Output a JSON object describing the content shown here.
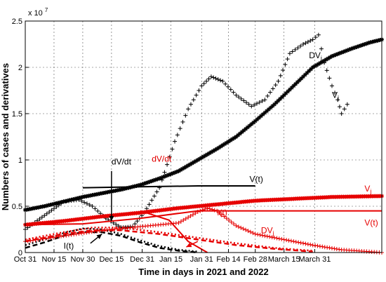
{
  "chart_data": {
    "type": "line",
    "xlabel": "Time in days in 2021 and 2022",
    "ylabel": "Numbers of cases and derivatives",
    "y_exponent_label": "x 10",
    "y_exponent_power": "7",
    "xlim": [
      0,
      186
    ],
    "ylim": [
      0,
      2.5
    ],
    "x_ticks": [
      {
        "x": 0,
        "label": "Oct 31"
      },
      {
        "x": 15,
        "label": "Nov 15"
      },
      {
        "x": 30,
        "label": "Nov 30"
      },
      {
        "x": 45,
        "label": "Dec 15"
      },
      {
        "x": 61,
        "label": "Dec 31"
      },
      {
        "x": 76,
        "label": "Jan 15"
      },
      {
        "x": 92,
        "label": "Jan 31"
      },
      {
        "x": 106,
        "label": "Feb 14"
      },
      {
        "x": 120,
        "label": "Feb 28"
      },
      {
        "x": 135,
        "label": "March 15"
      },
      {
        "x": 151,
        "label": "March 31"
      }
    ],
    "y_ticks": [
      {
        "y": 0,
        "label": "0"
      },
      {
        "y": 0.5,
        "label": "0.5"
      },
      {
        "y": 1,
        "label": "1"
      },
      {
        "y": 1.5,
        "label": "1.5"
      },
      {
        "y": 2,
        "label": "2"
      },
      {
        "y": 2.5,
        "label": "2.5"
      }
    ],
    "grid": true,
    "series": [
      {
        "color": "#000000",
        "style": "star",
        "points": [
          [
            0,
            0.46
          ],
          [
            10,
            0.5
          ],
          [
            20,
            0.55
          ],
          [
            30,
            0.6
          ],
          [
            40,
            0.64
          ],
          [
            50,
            0.68
          ],
          [
            60,
            0.73
          ],
          [
            70,
            0.8
          ],
          [
            80,
            0.88
          ],
          [
            90,
            1.0
          ],
          [
            100,
            1.12
          ],
          [
            110,
            1.25
          ],
          [
            120,
            1.42
          ],
          [
            130,
            1.6
          ],
          [
            140,
            1.8
          ],
          [
            150,
            2.0
          ],
          [
            160,
            2.12
          ],
          [
            170,
            2.2
          ],
          [
            180,
            2.27
          ],
          [
            186,
            2.3
          ]
        ]
      },
      {
        "color": "#000000",
        "style": "plus",
        "points": [
          [
            0,
            0.25
          ],
          [
            10,
            0.4
          ],
          [
            20,
            0.55
          ],
          [
            28,
            0.57
          ],
          [
            35,
            0.5
          ],
          [
            42,
            0.37
          ],
          [
            50,
            0.27
          ],
          [
            56,
            0.28
          ],
          [
            62,
            0.43
          ],
          [
            70,
            0.7
          ],
          [
            78,
            1.2
          ],
          [
            85,
            1.55
          ],
          [
            92,
            1.8
          ],
          [
            97,
            1.9
          ],
          [
            103,
            1.85
          ],
          [
            110,
            1.7
          ],
          [
            118,
            1.58
          ],
          [
            125,
            1.65
          ],
          [
            132,
            1.85
          ],
          [
            138,
            2.15
          ],
          [
            145,
            2.25
          ],
          [
            150,
            2.3
          ],
          [
            153,
            2.35
          ],
          [
            156,
            2.05
          ],
          [
            160,
            1.8
          ],
          [
            163,
            1.65
          ],
          [
            165,
            1.5
          ],
          [
            168,
            1.6
          ]
        ]
      },
      {
        "color": "#000000",
        "style": "line",
        "points": [
          [
            30,
            0.7
          ],
          [
            60,
            0.71
          ],
          [
            90,
            0.72
          ],
          [
            120,
            0.72
          ]
        ]
      },
      {
        "color": "#000000",
        "style": "dash",
        "points": [
          [
            0,
            0.05
          ],
          [
            10,
            0.11
          ],
          [
            20,
            0.18
          ],
          [
            30,
            0.22
          ],
          [
            40,
            0.22
          ],
          [
            50,
            0.18
          ],
          [
            60,
            0.11
          ],
          [
            70,
            0.05
          ],
          [
            80,
            0.02
          ],
          [
            90,
            0.0
          ]
        ]
      },
      {
        "color": "#000000",
        "style": "dots",
        "points": [
          [
            0,
            0.08
          ],
          [
            10,
            0.14
          ],
          [
            20,
            0.21
          ],
          [
            30,
            0.26
          ],
          [
            40,
            0.25
          ],
          [
            50,
            0.2
          ],
          [
            60,
            0.13
          ],
          [
            70,
            0.07
          ],
          [
            80,
            0.03
          ],
          [
            90,
            0.01
          ]
        ]
      },
      {
        "color": "#e60000",
        "style": "star",
        "points": [
          [
            0,
            0.3
          ],
          [
            20,
            0.34
          ],
          [
            40,
            0.39
          ],
          [
            60,
            0.43
          ],
          [
            80,
            0.48
          ],
          [
            100,
            0.52
          ],
          [
            120,
            0.56
          ],
          [
            140,
            0.58
          ],
          [
            160,
            0.6
          ],
          [
            186,
            0.61
          ]
        ]
      },
      {
        "color": "#e60000",
        "style": "line",
        "points": [
          [
            0,
            0.3
          ],
          [
            30,
            0.31
          ],
          [
            60,
            0.37
          ],
          [
            90,
            0.45
          ],
          [
            120,
            0.45
          ],
          [
            186,
            0.45
          ]
        ]
      },
      {
        "color": "#e60000",
        "style": "plus",
        "points": [
          [
            0,
            0.12
          ],
          [
            20,
            0.18
          ],
          [
            40,
            0.24
          ],
          [
            60,
            0.28
          ],
          [
            80,
            0.32
          ],
          [
            90,
            0.44
          ],
          [
            95,
            0.48
          ],
          [
            100,
            0.45
          ],
          [
            105,
            0.37
          ],
          [
            110,
            0.29
          ],
          [
            120,
            0.2
          ],
          [
            135,
            0.14
          ],
          [
            150,
            0.08
          ],
          [
            165,
            0.03
          ],
          [
            186,
            0.0
          ]
        ]
      },
      {
        "color": "#e60000",
        "style": "line",
        "points": [
          [
            60,
            0.45
          ],
          [
            75,
            0.35
          ],
          [
            85,
            0.12
          ],
          [
            95,
            0.0
          ]
        ]
      },
      {
        "color": "#e60000",
        "style": "dash",
        "points": [
          [
            0,
            0.12
          ],
          [
            20,
            0.2
          ],
          [
            35,
            0.24
          ],
          [
            50,
            0.24
          ],
          [
            70,
            0.2
          ],
          [
            90,
            0.14
          ],
          [
            110,
            0.08
          ],
          [
            130,
            0.04
          ],
          [
            150,
            0.01
          ]
        ]
      },
      {
        "color": "#e60000",
        "style": "dots",
        "points": [
          [
            0,
            0.14
          ],
          [
            20,
            0.22
          ],
          [
            35,
            0.27
          ],
          [
            50,
            0.27
          ],
          [
            70,
            0.22
          ],
          [
            90,
            0.16
          ],
          [
            110,
            0.1
          ],
          [
            130,
            0.05
          ],
          [
            150,
            0.02
          ]
        ]
      }
    ],
    "annotations": [
      {
        "text": "DV",
        "sub": "j",
        "color": "#000000",
        "x": 148,
        "y": 2.1
      },
      {
        "text": "V",
        "sub": "j",
        "color": "#000000",
        "x": 160,
        "y": 1.67
      },
      {
        "text": "dV/dt",
        "sub": "",
        "color": "#000000",
        "x": 45,
        "y": 0.95
      },
      {
        "text": "V(t)",
        "sub": "",
        "color": "#000000",
        "x": 117,
        "y": 0.76
      },
      {
        "text": "dV/dt",
        "sub": "",
        "color": "#e60000",
        "x": 66,
        "y": 0.98
      },
      {
        "text": "V",
        "sub": "j",
        "color": "#e60000",
        "x": 177,
        "y": 0.66
      },
      {
        "text": "V(t)",
        "sub": "",
        "color": "#e60000",
        "x": 177,
        "y": 0.29
      },
      {
        "text": "I(t)",
        "sub": "",
        "color": "#e60000",
        "x": 100,
        "y": 0.4
      },
      {
        "text": "DV",
        "sub": "j",
        "color": "#e60000",
        "x": 123,
        "y": 0.21
      },
      {
        "text": "I(t)",
        "sub": "",
        "color": "#000000",
        "x": 20,
        "y": 0.04
      }
    ],
    "arrows": [
      {
        "color": "#000000",
        "from": [
          45,
          0.88
        ],
        "to": [
          45,
          0.34
        ]
      },
      {
        "color": "#000000",
        "from": [
          34,
          0.1
        ],
        "to": [
          40,
          0.2
        ]
      },
      {
        "color": "#e60000",
        "from": [
          90,
          0.12
        ],
        "to": [
          84,
          0.06
        ]
      }
    ]
  }
}
